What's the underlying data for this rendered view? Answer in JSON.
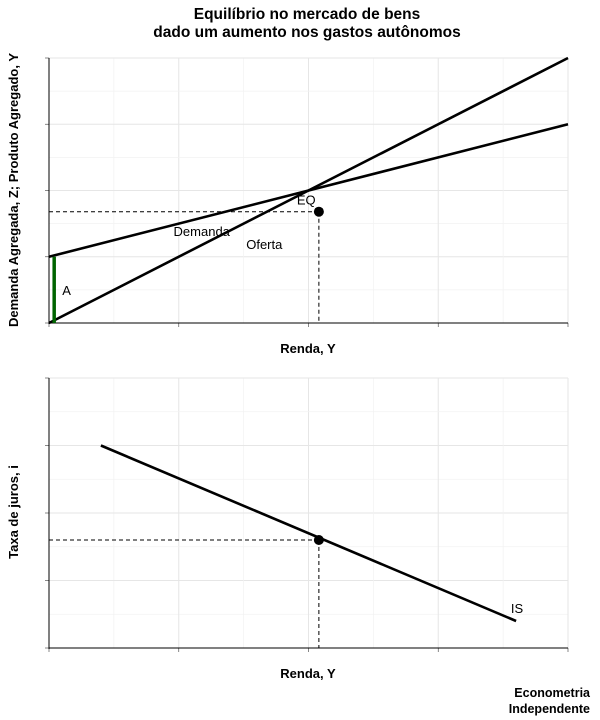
{
  "title_line1": "Equilíbrio no mercado de bens",
  "title_line2": "dado um aumento nos gastos autônomos",
  "caption_line1": "Econometria",
  "caption_line2": "Independente",
  "colors": {
    "line": "#000000",
    "autonomous": "#006400",
    "guide": "#000000"
  },
  "chart_data": [
    {
      "type": "line",
      "title": "",
      "xlabel": "Renda, Y",
      "ylabel": "Demanda Agregada, Z; Produto Agregado, Y",
      "xlim": [
        0,
        10
      ],
      "ylim": [
        0,
        10
      ],
      "grid": true,
      "tick_labels": false,
      "series": [
        {
          "name": "Demanda",
          "x": [
            0,
            10
          ],
          "y": [
            2.5,
            7.5
          ]
        },
        {
          "name": "Oferta",
          "x": [
            0,
            10
          ],
          "y": [
            0,
            10
          ]
        }
      ],
      "equilibrium": {
        "label": "EQ",
        "x": 5.2,
        "y": 4.2
      },
      "autonomous_spending": {
        "label": "A",
        "x": 0.1,
        "y_from": 0,
        "y_to": 2.5
      }
    },
    {
      "type": "line",
      "title": "",
      "xlabel": "Renda, Y",
      "ylabel": "Taxa de juros, i",
      "xlim": [
        0,
        10
      ],
      "ylim": [
        0,
        10
      ],
      "grid": true,
      "tick_labels": false,
      "series": [
        {
          "name": "IS",
          "x": [
            1,
            9
          ],
          "y": [
            7.5,
            1
          ]
        }
      ],
      "equilibrium": {
        "label": "",
        "x": 5.2,
        "y": 4.0
      }
    }
  ]
}
